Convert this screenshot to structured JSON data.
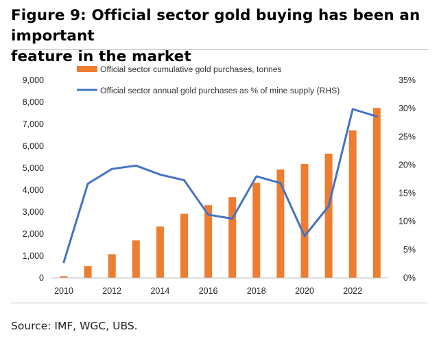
{
  "header": {
    "title_line1": "Figure 9: Official sector gold buying has been an important",
    "title_line2": "feature in the market"
  },
  "footer": {
    "source": "Source: IMF, WGC, UBS."
  },
  "colors": {
    "bar": "#ED7D31",
    "line": "#4472C4",
    "axis": "#BFBFBF"
  },
  "chart_data": {
    "type": "bar",
    "title": "",
    "xlabel": "",
    "ylabel": "",
    "y2label": "",
    "grid": false,
    "legend_position": "top",
    "x": [
      2010,
      2011,
      2012,
      2013,
      2014,
      2015,
      2016,
      2017,
      2018,
      2019,
      2020,
      2021,
      2022,
      2023
    ],
    "x_tick_labels": [
      "2010",
      "2012",
      "2014",
      "2016",
      "2018",
      "2020",
      "2022"
    ],
    "ylim": [
      0,
      9000
    ],
    "y_tick_labels": [
      "0",
      "1,000",
      "2,000",
      "3,000",
      "4,000",
      "5,000",
      "6,000",
      "7,000",
      "8,000",
      "9,000"
    ],
    "y2lim": [
      0,
      35
    ],
    "y2_tick_labels": [
      "0%",
      "5%",
      "10%",
      "15%",
      "20%",
      "25%",
      "30%",
      "35%"
    ],
    "series": [
      {
        "name": "Official sector cumulative gold purchases, tonnes",
        "type": "bar",
        "axis": "left",
        "values": [
          80,
          540,
          1080,
          1710,
          2340,
          2920,
          3310,
          3680,
          4330,
          4940,
          5190,
          5660,
          6720,
          7740
        ]
      },
      {
        "name": "Official sector annual gold purchases as % of mine supply (RHS)",
        "type": "line",
        "axis": "right",
        "values": [
          2.8,
          16.7,
          19.3,
          19.9,
          18.3,
          17.3,
          11.2,
          10.5,
          18.0,
          16.8,
          7.4,
          12.7,
          29.9,
          28.6
        ]
      }
    ]
  }
}
